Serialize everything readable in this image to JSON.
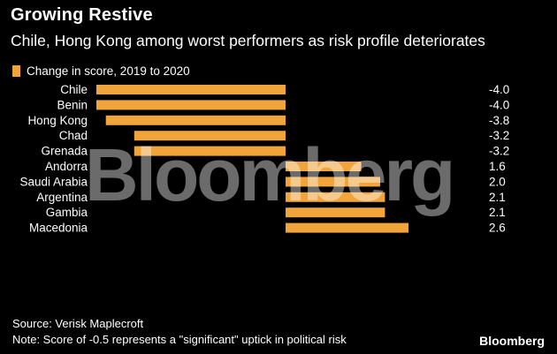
{
  "header": {
    "title": "Growing Restive",
    "subtitle": "Chile, Hong Kong among worst performers as risk profile deteriorates"
  },
  "footer": {
    "source": "Source: Verisk Maplecroft",
    "note": "Note: Score of -0.5 represents a \"significant\" uptick in political risk",
    "brand": "Bloomberg"
  },
  "watermark": "Bloomberg",
  "colors": {
    "bar": "#f0a43a",
    "background": "#000000",
    "text": "#ffffff"
  },
  "chart_data": {
    "type": "bar",
    "orientation": "horizontal",
    "title": "Growing Restive",
    "subtitle": "Chile, Hong Kong among worst performers as risk profile deteriorates",
    "legend": "Change in score, 2019 to 2020",
    "legend_position": "top-left",
    "grid": false,
    "categories": [
      "Chile",
      "Benin",
      "Hong Kong",
      "Chad",
      "Grenada",
      "Andorra",
      "Saudi Arabia",
      "Argentina",
      "Gambia",
      "Macedonia"
    ],
    "values": [
      -4.0,
      -4.0,
      -3.8,
      -3.2,
      -3.2,
      1.6,
      2.0,
      2.1,
      2.1,
      2.6
    ],
    "value_labels": [
      "-4.0",
      "-4.0",
      "-3.8",
      "-3.2",
      "-3.2",
      "1.6",
      "2.0",
      "2.1",
      "2.1",
      "2.6"
    ],
    "xlim": [
      -4.0,
      2.6
    ]
  }
}
